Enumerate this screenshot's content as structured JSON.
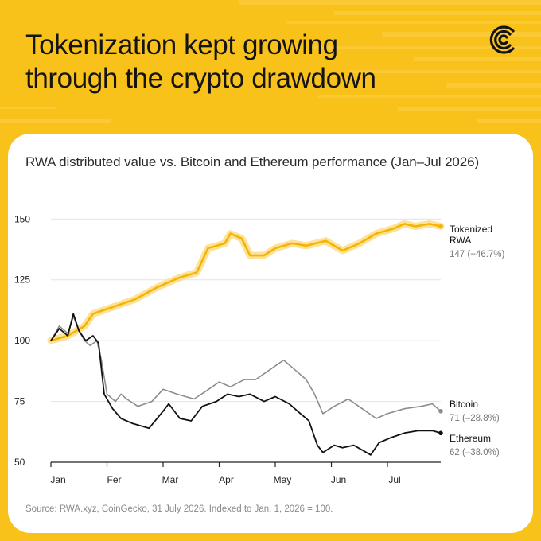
{
  "header": {
    "title_line1": "Tokenization kept growing",
    "title_line2": "through the crypto drawdown",
    "logo_icon": "concentric-c-logo-icon"
  },
  "colors": {
    "background": "#f9c21a",
    "card": "#ffffff",
    "tokenized": "#f5b400",
    "tokenized_glow": "#fde29a",
    "bitcoin": "#8c8c8c",
    "ethereum": "#111111",
    "grid": "#e4e4e4",
    "axis": "#222222"
  },
  "footer": {
    "source": "Source: RWA.xyz, CoinGecko, 31 July 2026. Indexed to Jan. 1, 2026 = 100."
  },
  "chart_data": {
    "type": "line",
    "subtitle": "RWA distributed value vs. Bitcoin and Ethereum performance (Jan–Jul 2026)",
    "xlabel": "",
    "ylabel": "",
    "x_range": [
      0,
      6.95
    ],
    "ylim": [
      50,
      155
    ],
    "y_ticks": [
      50,
      75,
      100,
      125,
      150
    ],
    "x_tick_positions": [
      0,
      1,
      2,
      3,
      4,
      5,
      6
    ],
    "x_tick_labels": [
      "Jan",
      "Fer",
      "Mar",
      "Apr",
      "May",
      "Jun",
      "Jul"
    ],
    "grid": "horizontal",
    "legend": "end-of-line labels",
    "series": [
      {
        "key": "tokenized",
        "label_line1": "Tokenized",
        "label_line2": "RWA",
        "value_label": "147 (+46.7%)",
        "points": [
          [
            0,
            100
          ],
          [
            0.3,
            102
          ],
          [
            0.6,
            106
          ],
          [
            0.75,
            111
          ],
          [
            1.0,
            113
          ],
          [
            1.5,
            117
          ],
          [
            1.9,
            122
          ],
          [
            2.3,
            126
          ],
          [
            2.6,
            128
          ],
          [
            2.8,
            138
          ],
          [
            3.1,
            140
          ],
          [
            3.2,
            144
          ],
          [
            3.4,
            142
          ],
          [
            3.55,
            135
          ],
          [
            3.8,
            135
          ],
          [
            4.0,
            138
          ],
          [
            4.3,
            140
          ],
          [
            4.55,
            139
          ],
          [
            4.9,
            141
          ],
          [
            5.2,
            137
          ],
          [
            5.5,
            140
          ],
          [
            5.8,
            144
          ],
          [
            6.1,
            146
          ],
          [
            6.3,
            148
          ],
          [
            6.5,
            147
          ],
          [
            6.75,
            148
          ],
          [
            6.95,
            147
          ]
        ]
      },
      {
        "key": "bitcoin",
        "label_line1": "Bitcoin",
        "label_line2": "",
        "value_label": "71 (–28.8%)",
        "points": [
          [
            0,
            100
          ],
          [
            0.15,
            106
          ],
          [
            0.3,
            103
          ],
          [
            0.4,
            110
          ],
          [
            0.5,
            104
          ],
          [
            0.6,
            100
          ],
          [
            0.7,
            98
          ],
          [
            0.82,
            100
          ],
          [
            0.9,
            92
          ],
          [
            1.0,
            78
          ],
          [
            1.15,
            75
          ],
          [
            1.25,
            78
          ],
          [
            1.35,
            76
          ],
          [
            1.55,
            73
          ],
          [
            1.8,
            75
          ],
          [
            2.0,
            80
          ],
          [
            2.25,
            78
          ],
          [
            2.55,
            76
          ],
          [
            2.75,
            79
          ],
          [
            3.0,
            83
          ],
          [
            3.2,
            81
          ],
          [
            3.45,
            84
          ],
          [
            3.65,
            84
          ],
          [
            3.9,
            88
          ],
          [
            4.15,
            92
          ],
          [
            4.35,
            88
          ],
          [
            4.55,
            84
          ],
          [
            4.7,
            78
          ],
          [
            4.85,
            70
          ],
          [
            5.05,
            73
          ],
          [
            5.3,
            76
          ],
          [
            5.55,
            72
          ],
          [
            5.8,
            68
          ],
          [
            6.0,
            70
          ],
          [
            6.3,
            72
          ],
          [
            6.6,
            73
          ],
          [
            6.8,
            74
          ],
          [
            6.95,
            71
          ]
        ]
      },
      {
        "key": "ethereum",
        "label_line1": "Ethereum",
        "label_line2": "",
        "value_label": "62 (–38.0%)",
        "points": [
          [
            0,
            100
          ],
          [
            0.15,
            105
          ],
          [
            0.3,
            102
          ],
          [
            0.4,
            111
          ],
          [
            0.5,
            104
          ],
          [
            0.62,
            100
          ],
          [
            0.75,
            102
          ],
          [
            0.85,
            99
          ],
          [
            0.95,
            78
          ],
          [
            1.1,
            72
          ],
          [
            1.25,
            68
          ],
          [
            1.45,
            66
          ],
          [
            1.75,
            64
          ],
          [
            2.0,
            71
          ],
          [
            2.1,
            74
          ],
          [
            2.3,
            68
          ],
          [
            2.5,
            67
          ],
          [
            2.7,
            73
          ],
          [
            2.95,
            75
          ],
          [
            3.15,
            78
          ],
          [
            3.35,
            77
          ],
          [
            3.55,
            78
          ],
          [
            3.8,
            75
          ],
          [
            4.0,
            77
          ],
          [
            4.25,
            74
          ],
          [
            4.45,
            70
          ],
          [
            4.6,
            67
          ],
          [
            4.75,
            57
          ],
          [
            4.85,
            54
          ],
          [
            5.05,
            57
          ],
          [
            5.2,
            56
          ],
          [
            5.4,
            57
          ],
          [
            5.55,
            55
          ],
          [
            5.7,
            53
          ],
          [
            5.85,
            58
          ],
          [
            6.05,
            60
          ],
          [
            6.3,
            62
          ],
          [
            6.55,
            63
          ],
          [
            6.8,
            63
          ],
          [
            6.95,
            62
          ]
        ]
      }
    ]
  }
}
